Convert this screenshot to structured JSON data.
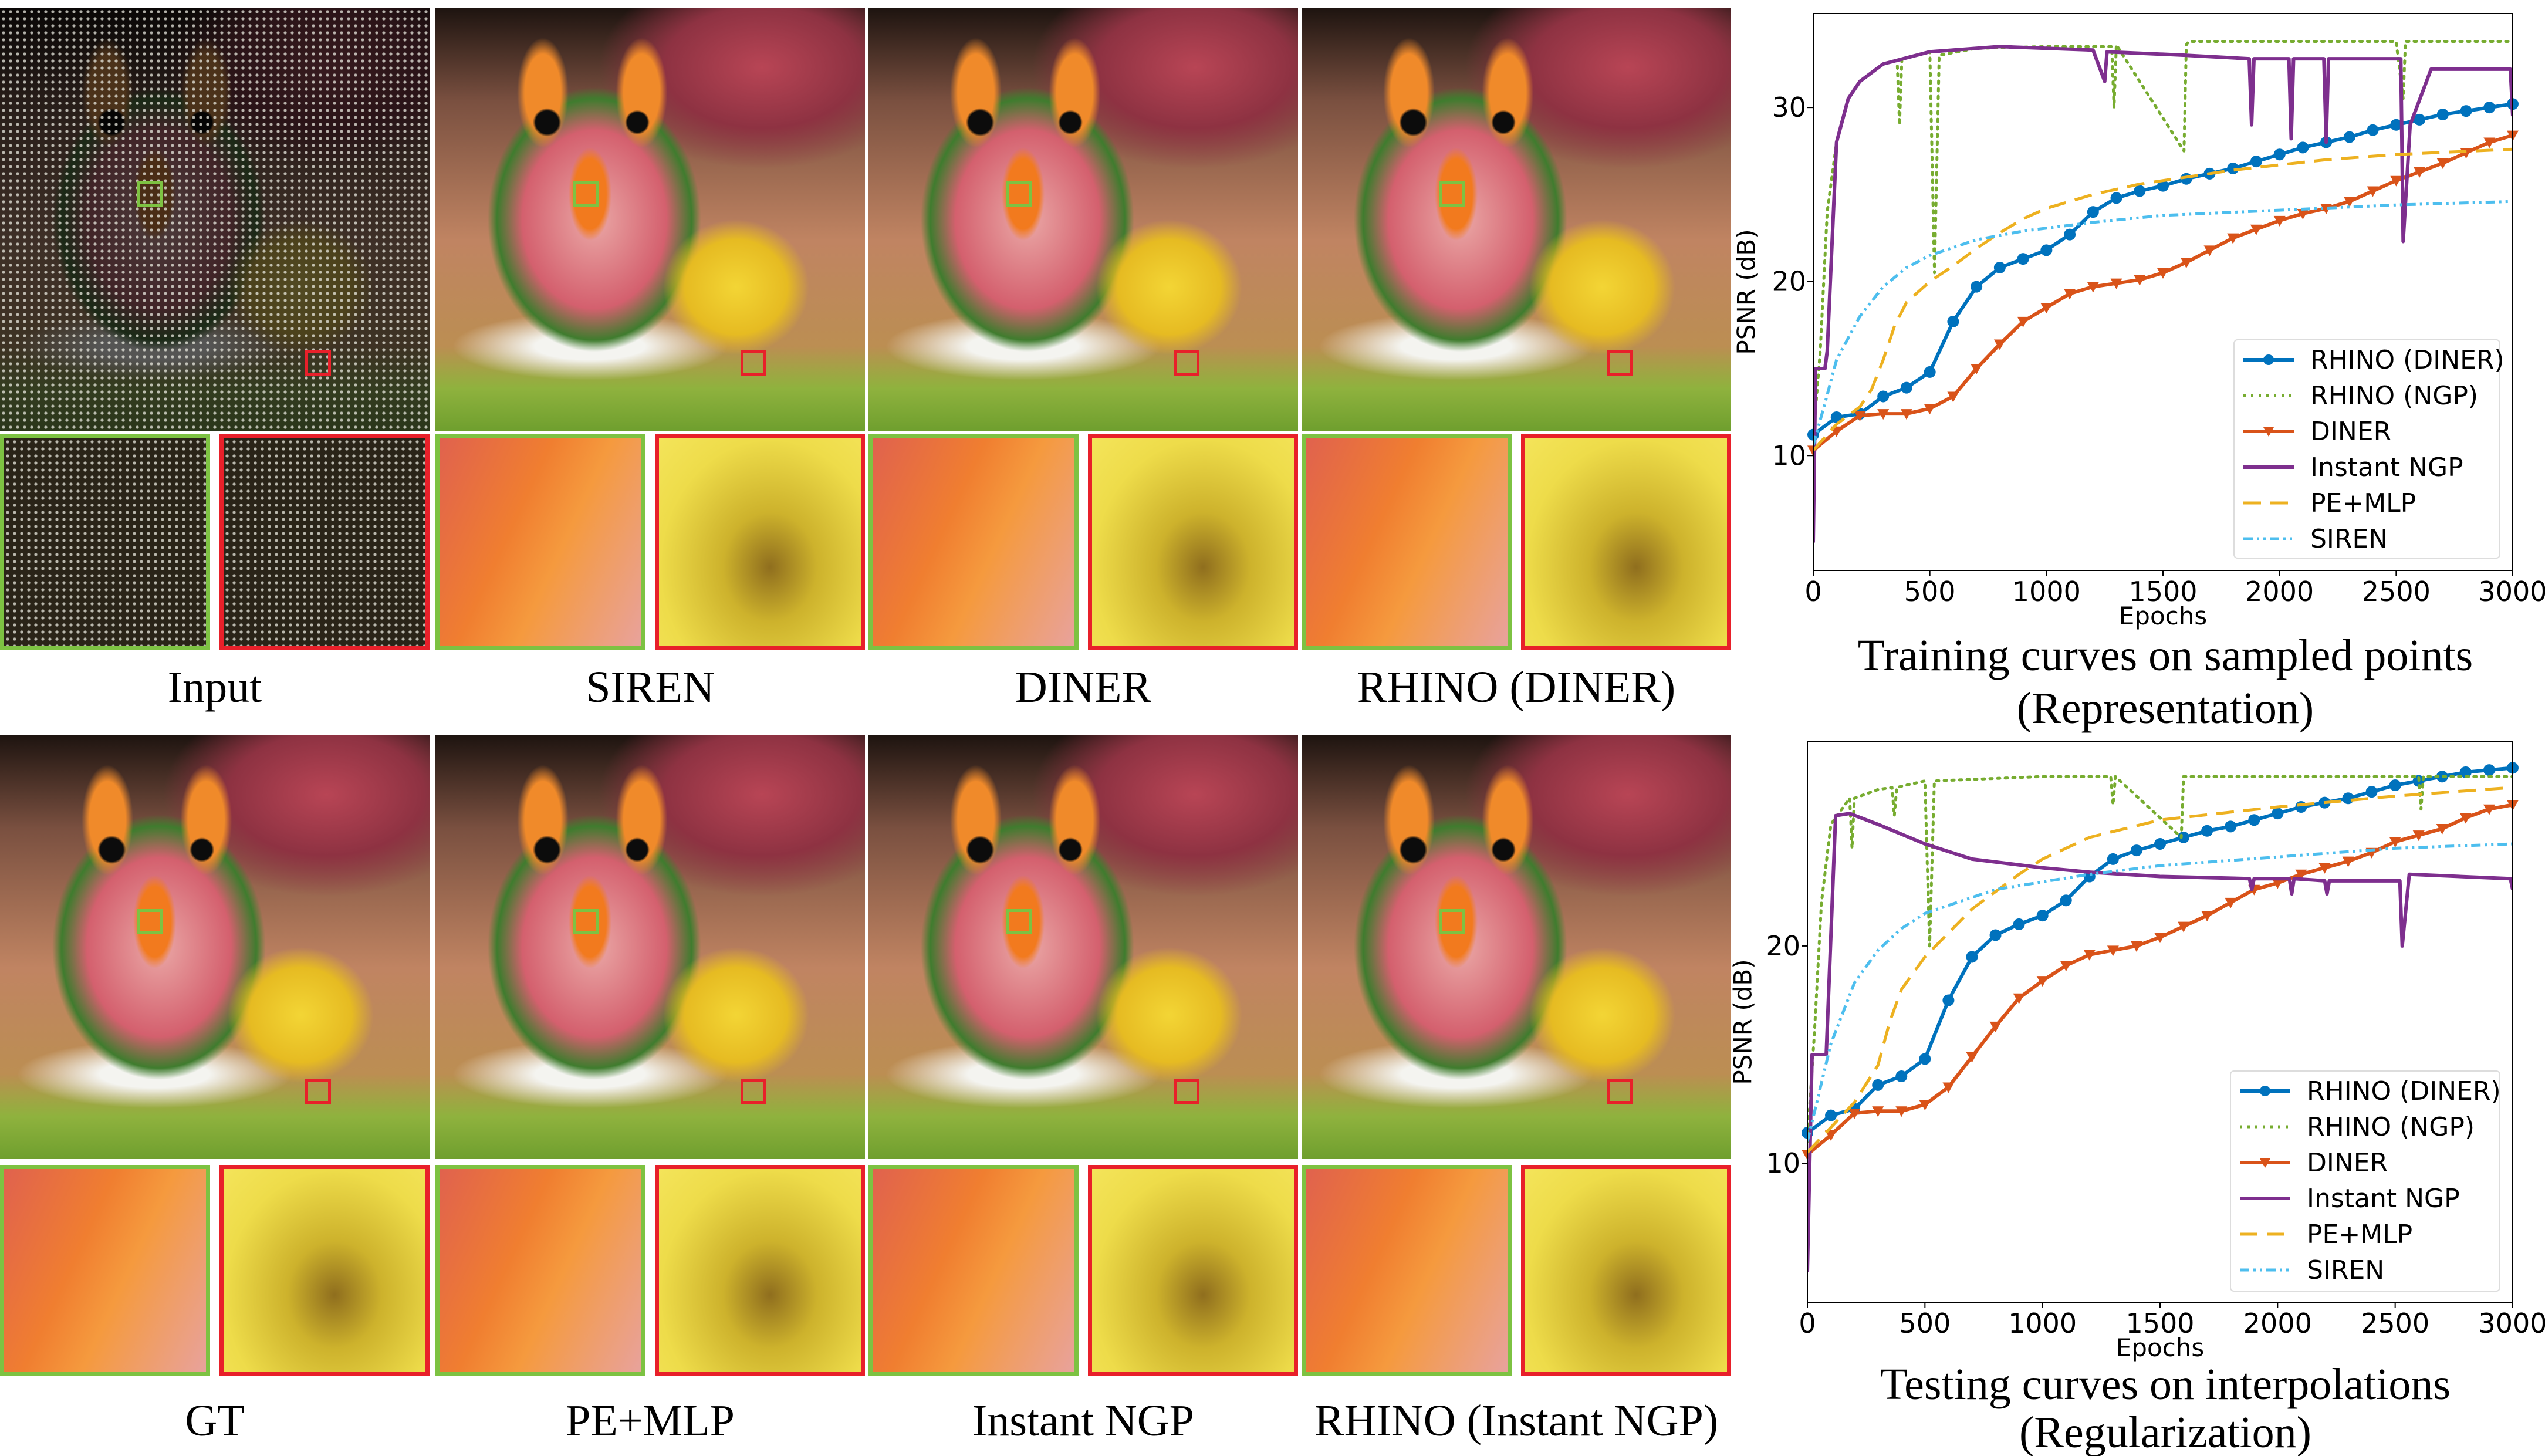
{
  "panels": [
    {
      "label": "Input",
      "kind": "input"
    },
    {
      "label": "SIREN",
      "kind": "photo"
    },
    {
      "label": "DINER",
      "kind": "photo"
    },
    {
      "label": "RHINO (DINER)",
      "kind": "photo"
    },
    {
      "label": "GT",
      "kind": "photo"
    },
    {
      "label": "PE+MLP",
      "kind": "photo"
    },
    {
      "label": "Instant NGP",
      "kind": "photo"
    },
    {
      "label": "RHINO (Instant NGP)",
      "kind": "photo"
    }
  ],
  "colors": {
    "zoom_box_green": "#7dc242",
    "zoom_box_red": "#e8202a"
  },
  "chart_data": [
    {
      "type": "line",
      "title": "Training curves on sampled points",
      "subtitle": "(Representation)",
      "xlabel": "Epochs",
      "ylabel": "PSNR (dB)",
      "xlim": [
        0,
        3000
      ],
      "ylim": [
        3.4,
        35.4
      ],
      "xticks": [
        0,
        500,
        1000,
        1500,
        2000,
        2500,
        3000
      ],
      "yticks": [
        10,
        20,
        30
      ],
      "grid": false,
      "legend_position": "lower-right",
      "series": [
        {
          "name": "RHINO (DINER)",
          "color": "#0072BD",
          "style": "solid",
          "marker": "circle",
          "x": [
            0,
            100,
            200,
            300,
            400,
            500,
            600,
            700,
            800,
            900,
            1000,
            1100,
            1200,
            1300,
            1400,
            1500,
            1600,
            1700,
            1800,
            1900,
            2000,
            2100,
            2200,
            2300,
            2400,
            2500,
            2600,
            2700,
            2800,
            2900,
            3000
          ],
          "y": [
            11.2,
            12.2,
            12.4,
            13.4,
            13.9,
            14.8,
            17.7,
            19.7,
            20.8,
            21.3,
            21.8,
            22.7,
            24.0,
            24.8,
            25.2,
            25.5,
            25.9,
            26.2,
            26.5,
            26.9,
            27.3,
            27.7,
            28.0,
            28.3,
            28.7,
            29.0,
            29.3,
            29.6,
            29.8,
            30.0,
            30.2
          ]
        },
        {
          "name": "RHINO (NGP)",
          "color": "#77AC30",
          "style": "dotted",
          "marker": "none",
          "x": [
            0,
            30,
            60,
            100,
            150,
            200,
            300,
            360,
            370,
            380,
            500,
            520,
            540,
            700,
            1000,
            1280,
            1290,
            1300,
            1590,
            1600,
            1610,
            2000,
            2500,
            2530,
            2540,
            3000
          ],
          "y": [
            11,
            16,
            24,
            28,
            30.5,
            31.5,
            32.5,
            32.7,
            29,
            32.8,
            33.2,
            20.5,
            33.0,
            33.4,
            33.5,
            33.5,
            30,
            33.6,
            27.5,
            33.6,
            33.8,
            33.8,
            33.8,
            30.5,
            33.8,
            33.8
          ]
        },
        {
          "name": "DINER",
          "color": "#D95319",
          "style": "solid",
          "marker": "triangle-down",
          "x": [
            0,
            100,
            200,
            300,
            400,
            500,
            600,
            700,
            800,
            900,
            1000,
            1100,
            1200,
            1300,
            1400,
            1500,
            1600,
            1700,
            1800,
            1900,
            2000,
            2100,
            2200,
            2300,
            2400,
            2500,
            2600,
            2700,
            2800,
            2900,
            3000
          ],
          "y": [
            10.3,
            11.4,
            12.3,
            12.4,
            12.4,
            12.7,
            13.4,
            15.0,
            16.4,
            17.7,
            18.5,
            19.3,
            19.7,
            19.9,
            20.1,
            20.5,
            21.1,
            21.8,
            22.5,
            23.0,
            23.5,
            23.9,
            24.2,
            24.6,
            25.2,
            25.8,
            26.3,
            26.8,
            27.4,
            28.0,
            28.4
          ]
        },
        {
          "name": "Instant NGP",
          "color": "#7E2F8E",
          "style": "solid",
          "marker": "none",
          "x": [
            0,
            10,
            50,
            60,
            100,
            150,
            200,
            300,
            500,
            800,
            1200,
            1250,
            1260,
            1600,
            1870,
            1880,
            1890,
            2040,
            2050,
            2060,
            2190,
            2200,
            2210,
            2520,
            2530,
            2560,
            2650,
            2990,
            3000
          ],
          "y": [
            5,
            15,
            15,
            16,
            28,
            30.5,
            31.5,
            32.5,
            33.2,
            33.5,
            33.3,
            31.5,
            33.2,
            33.0,
            32.8,
            29.0,
            32.8,
            32.8,
            28.2,
            32.8,
            32.8,
            28.0,
            32.8,
            32.8,
            22.3,
            29.0,
            32.2,
            32.2,
            29.5
          ]
        },
        {
          "name": "PE+MLP",
          "color": "#EDB120",
          "style": "dashed",
          "marker": "none",
          "x": [
            0,
            100,
            200,
            250,
            300,
            350,
            400,
            500,
            600,
            700,
            800,
            900,
            1000,
            1200,
            1400,
            1600,
            1800,
            2000,
            2200,
            2500,
            3000
          ],
          "y": [
            10.3,
            11.8,
            12.8,
            13.8,
            15.5,
            17.5,
            18.8,
            20.0,
            20.9,
            21.9,
            22.8,
            23.6,
            24.2,
            25.0,
            25.6,
            26.0,
            26.4,
            26.7,
            27.0,
            27.3,
            27.6
          ]
        },
        {
          "name": "SIREN",
          "color": "#4DBEEE",
          "style": "dashdotdot",
          "marker": "none",
          "x": [
            0,
            50,
            100,
            200,
            300,
            400,
            500,
            700,
            900,
            1200,
            1500,
            2000,
            2500,
            3000
          ],
          "y": [
            10.6,
            13.0,
            15.5,
            18.0,
            19.7,
            20.8,
            21.5,
            22.4,
            22.9,
            23.4,
            23.8,
            24.1,
            24.4,
            24.6
          ]
        }
      ]
    },
    {
      "type": "line",
      "title": "Testing curves on interpolations",
      "subtitle": "(Regularization)",
      "xlabel": "Epochs",
      "ylabel": "PSNR (dB)",
      "xlim": [
        0,
        3000
      ],
      "ylim": [
        3.6,
        29.4
      ],
      "xticks": [
        0,
        500,
        1000,
        1500,
        2000,
        2500,
        3000
      ],
      "yticks": [
        10,
        20
      ],
      "grid": false,
      "legend_position": "lower-right",
      "series": [
        {
          "name": "RHINO (DINER)",
          "color": "#0072BD",
          "style": "solid",
          "marker": "circle",
          "x": [
            0,
            100,
            200,
            300,
            400,
            500,
            600,
            700,
            800,
            900,
            1000,
            1100,
            1200,
            1300,
            1400,
            1500,
            1600,
            1700,
            1800,
            1900,
            2000,
            2100,
            2200,
            2300,
            2400,
            2500,
            2600,
            2700,
            2800,
            2900,
            3000
          ],
          "y": [
            11.4,
            12.2,
            12.5,
            13.6,
            14.0,
            14.8,
            17.5,
            19.5,
            20.5,
            21.0,
            21.4,
            22.1,
            23.2,
            24.0,
            24.4,
            24.7,
            25.0,
            25.3,
            25.5,
            25.8,
            26.1,
            26.4,
            26.6,
            26.8,
            27.1,
            27.4,
            27.6,
            27.8,
            28.0,
            28.1,
            28.2
          ]
        },
        {
          "name": "RHINO (NGP)",
          "color": "#77AC30",
          "style": "dotted",
          "marker": "none",
          "x": [
            0,
            30,
            60,
            100,
            180,
            190,
            200,
            300,
            360,
            370,
            380,
            500,
            520,
            540,
            1000,
            1290,
            1300,
            1310,
            1590,
            1600,
            1610,
            2000,
            2600,
            2610,
            2620,
            3000
          ],
          "y": [
            11,
            16,
            22,
            25.6,
            26.8,
            24.5,
            26.8,
            27.2,
            27.3,
            26.0,
            27.3,
            27.6,
            20.0,
            27.6,
            27.8,
            27.8,
            26.5,
            27.8,
            25.0,
            27.8,
            27.8,
            27.8,
            27.8,
            26.3,
            27.8,
            27.8
          ]
        },
        {
          "name": "DINER",
          "color": "#D95319",
          "style": "solid",
          "marker": "triangle-down",
          "x": [
            0,
            100,
            200,
            300,
            400,
            500,
            600,
            700,
            800,
            900,
            1000,
            1100,
            1200,
            1300,
            1400,
            1500,
            1600,
            1700,
            1800,
            1900,
            2000,
            2100,
            2200,
            2300,
            2400,
            2500,
            2600,
            2700,
            2800,
            2900,
            3000
          ],
          "y": [
            10.4,
            11.3,
            12.3,
            12.4,
            12.4,
            12.7,
            13.5,
            14.9,
            16.3,
            17.6,
            18.4,
            19.1,
            19.6,
            19.8,
            20.0,
            20.4,
            20.9,
            21.4,
            22.0,
            22.6,
            22.9,
            23.3,
            23.6,
            23.9,
            24.3,
            24.8,
            25.1,
            25.4,
            25.9,
            26.3,
            26.5
          ]
        },
        {
          "name": "Instant NGP",
          "color": "#7E2F8E",
          "style": "solid",
          "marker": "none",
          "x": [
            0,
            20,
            80,
            120,
            180,
            300,
            500,
            700,
            1000,
            1200,
            1500,
            1880,
            1890,
            1900,
            2050,
            2060,
            2070,
            2200,
            2210,
            2220,
            2520,
            2530,
            2560,
            2990,
            3000
          ],
          "y": [
            5,
            15,
            15,
            26.0,
            26.1,
            25.6,
            24.7,
            24.0,
            23.6,
            23.4,
            23.2,
            23.1,
            22.6,
            23.1,
            23.1,
            22.4,
            23.1,
            23.0,
            22.4,
            23.0,
            23.0,
            20.0,
            23.3,
            23.1,
            22.6
          ]
        },
        {
          "name": "PE+MLP",
          "color": "#EDB120",
          "style": "dashed",
          "marker": "none",
          "x": [
            0,
            200,
            300,
            350,
            400,
            500,
            700,
            900,
            1000,
            1200,
            1500,
            2000,
            2500,
            3000
          ],
          "y": [
            10.5,
            12.8,
            14.5,
            16.5,
            18.0,
            19.5,
            21.7,
            23.3,
            24.0,
            25.0,
            25.8,
            26.4,
            26.9,
            27.3
          ]
        },
        {
          "name": "SIREN",
          "color": "#4DBEEE",
          "style": "dashdotdot",
          "marker": "none",
          "x": [
            0,
            100,
            200,
            300,
            400,
            500,
            800,
            1200,
            1500,
            2000,
            2500,
            3000
          ],
          "y": [
            11.0,
            15.5,
            18.3,
            19.8,
            20.8,
            21.5,
            22.6,
            23.3,
            23.7,
            24.1,
            24.5,
            24.7
          ]
        }
      ]
    }
  ]
}
